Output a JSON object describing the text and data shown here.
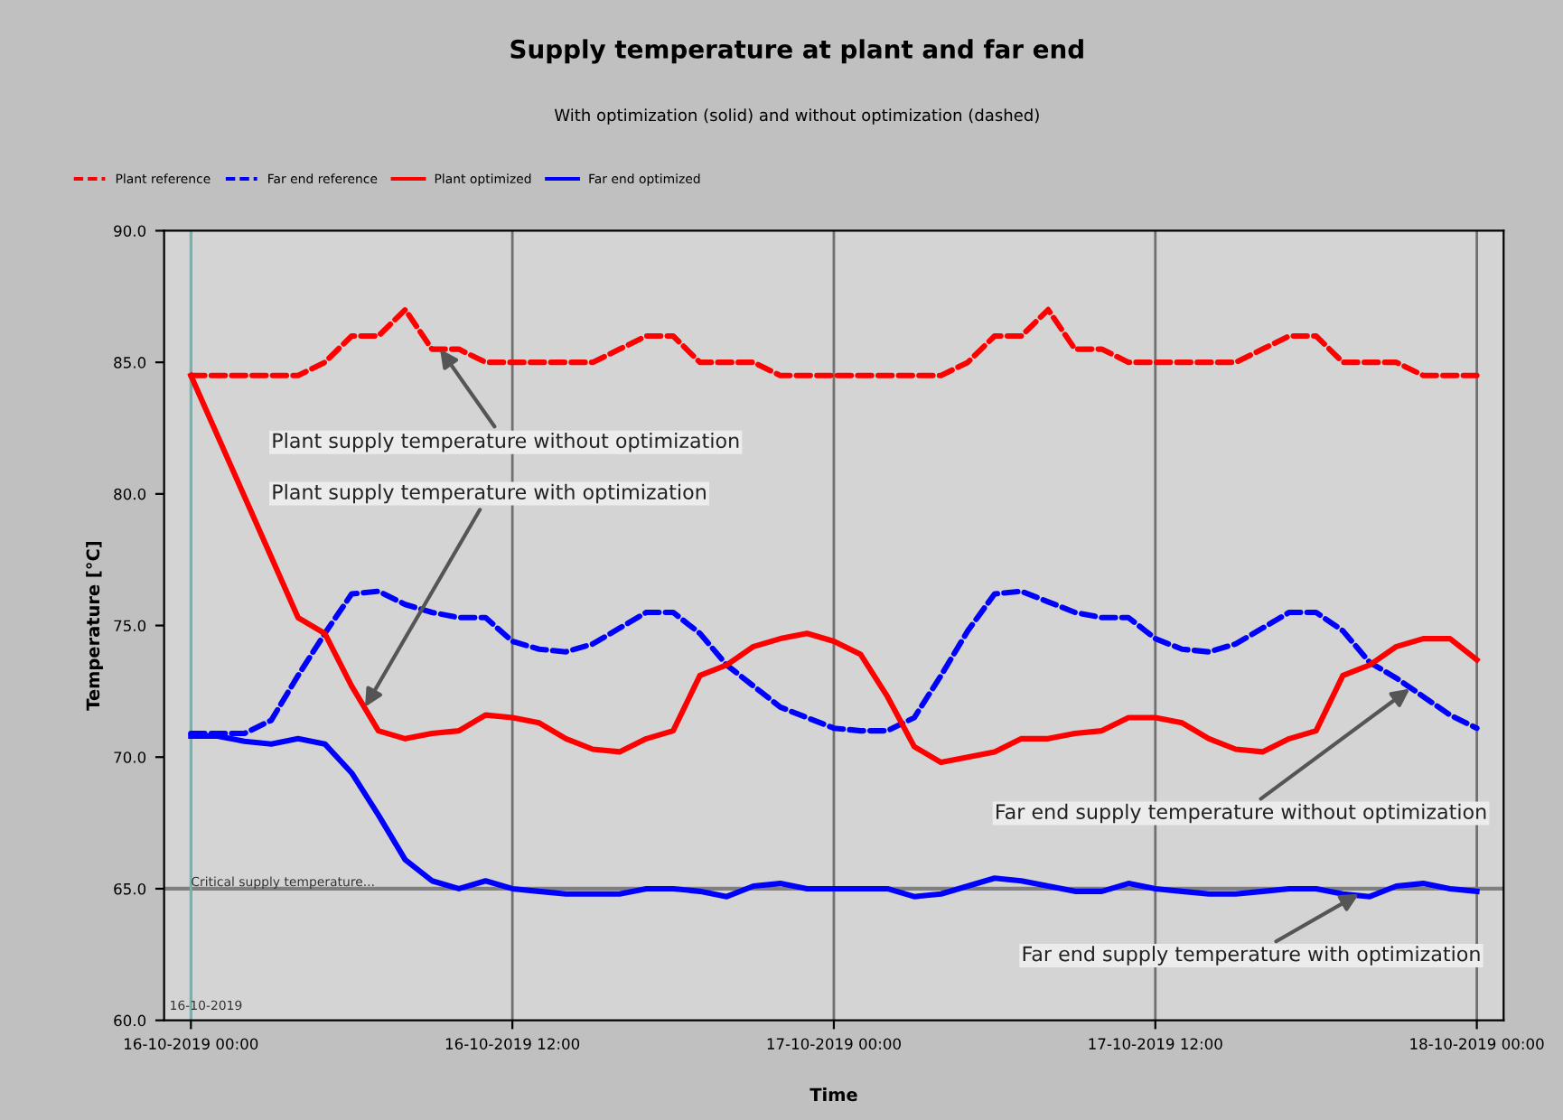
{
  "chart_data": {
    "type": "line",
    "title": "Supply temperature at plant and far end",
    "subtitle": "With optimization (solid) and without optimization (dashed)",
    "xlabel": "Time",
    "ylabel": "Temperature [°C]",
    "x": [
      "2019-10-16T00:00",
      "2019-10-16T01:00",
      "2019-10-16T02:00",
      "2019-10-16T03:00",
      "2019-10-16T04:00",
      "2019-10-16T05:00",
      "2019-10-16T06:00",
      "2019-10-16T07:00",
      "2019-10-16T08:00",
      "2019-10-16T09:00",
      "2019-10-16T10:00",
      "2019-10-16T11:00",
      "2019-10-16T12:00",
      "2019-10-16T13:00",
      "2019-10-16T14:00",
      "2019-10-16T15:00",
      "2019-10-16T16:00",
      "2019-10-16T17:00",
      "2019-10-16T18:00",
      "2019-10-16T19:00",
      "2019-10-16T20:00",
      "2019-10-16T21:00",
      "2019-10-16T22:00",
      "2019-10-16T23:00",
      "2019-10-17T00:00",
      "2019-10-17T01:00",
      "2019-10-17T02:00",
      "2019-10-17T03:00",
      "2019-10-17T04:00",
      "2019-10-17T05:00",
      "2019-10-17T06:00",
      "2019-10-17T07:00",
      "2019-10-17T08:00",
      "2019-10-17T09:00",
      "2019-10-17T10:00",
      "2019-10-17T11:00",
      "2019-10-17T12:00",
      "2019-10-17T13:00",
      "2019-10-17T14:00",
      "2019-10-17T15:00",
      "2019-10-17T16:00",
      "2019-10-17T17:00",
      "2019-10-17T18:00",
      "2019-10-17T19:00",
      "2019-10-17T20:00",
      "2019-10-17T21:00",
      "2019-10-17T22:00",
      "2019-10-17T23:00",
      "2019-10-18T00:00"
    ],
    "series": [
      {
        "name": "Plant reference",
        "color": "#ff0000",
        "line_style": "dashed",
        "values": [
          84.5,
          84.5,
          84.5,
          84.5,
          84.5,
          85,
          86,
          86,
          87,
          85.5,
          85.5,
          85,
          85,
          85,
          85,
          85,
          85.5,
          86,
          86,
          85,
          85,
          85,
          84.5,
          84.5,
          84.5,
          84.5,
          84.5,
          84.5,
          84.5,
          85,
          86,
          86,
          87,
          85.5,
          85.5,
          85,
          85,
          85,
          85,
          85,
          85.5,
          86,
          86,
          85,
          85,
          85,
          84.5,
          84.5,
          84.5
        ]
      },
      {
        "name": "Far end reference",
        "color": "#0000ff",
        "line_style": "dashed",
        "values": [
          70.9,
          70.9,
          70.9,
          71.4,
          73.1,
          74.7,
          76.2,
          76.3,
          75.8,
          75.5,
          75.3,
          75.3,
          74.4,
          74.1,
          74.0,
          74.3,
          74.9,
          75.5,
          75.5,
          74.7,
          73.5,
          72.7,
          71.9,
          71.5,
          71.1,
          71.0,
          71.0,
          71.5,
          73.1,
          74.8,
          76.2,
          76.3,
          75.9,
          75.5,
          75.3,
          75.3,
          74.5,
          74.1,
          74.0,
          74.3,
          74.9,
          75.5,
          75.5,
          74.8,
          73.6,
          73.0,
          72.3,
          71.6,
          71.1
        ]
      },
      {
        "name": "Plant optimized",
        "color": "#ff0000",
        "line_style": "solid",
        "values": [
          84.5,
          82.2,
          79.9,
          77.6,
          75.3,
          74.7,
          72.7,
          71.0,
          70.7,
          70.9,
          71.0,
          71.6,
          71.5,
          71.3,
          70.7,
          70.3,
          70.2,
          70.7,
          71.0,
          73.1,
          73.5,
          74.2,
          74.5,
          74.7,
          74.4,
          73.9,
          72.3,
          70.4,
          69.8,
          70.0,
          70.2,
          70.7,
          70.7,
          70.9,
          71.0,
          71.5,
          71.5,
          71.3,
          70.7,
          70.3,
          70.2,
          70.7,
          71.0,
          73.1,
          73.5,
          74.2,
          74.5,
          74.5,
          73.7
        ]
      },
      {
        "name": "Far end optimized",
        "color": "#0000ff",
        "line_style": "solid",
        "values": [
          70.8,
          70.8,
          70.6,
          70.5,
          70.7,
          70.5,
          69.4,
          67.8,
          66.1,
          65.3,
          65.0,
          65.3,
          65.0,
          64.9,
          64.8,
          64.8,
          64.8,
          65.0,
          65.0,
          64.9,
          64.7,
          65.1,
          65.2,
          65.0,
          65.0,
          65.0,
          65.0,
          64.7,
          64.8,
          65.1,
          65.4,
          65.3,
          65.1,
          64.9,
          64.9,
          65.2,
          65.0,
          64.9,
          64.8,
          64.8,
          64.9,
          65.0,
          65.0,
          64.8,
          64.7,
          65.1,
          65.2,
          65.0,
          64.9
        ]
      }
    ],
    "xlim": [
      "2019-10-15T23:00",
      "2019-10-18T01:00"
    ],
    "ylim": [
      60,
      90
    ],
    "xticks": [
      {
        "value": "2019-10-16T00:00",
        "label": "16-10-2019 00:00"
      },
      {
        "value": "2019-10-16T12:00",
        "label": "16-10-2019 12:00"
      },
      {
        "value": "2019-10-17T00:00",
        "label": "17-10-2019 00:00"
      },
      {
        "value": "2019-10-17T12:00",
        "label": "17-10-2019 12:00"
      },
      {
        "value": "2019-10-18T00:00",
        "label": "18-10-2019 00:00"
      }
    ],
    "yticks": [
      {
        "value": 60,
        "label": "60.0"
      },
      {
        "value": 65,
        "label": "65.0"
      },
      {
        "value": 70,
        "label": "70.0"
      },
      {
        "value": 75,
        "label": "75.0"
      },
      {
        "value": 80,
        "label": "80.0"
      },
      {
        "value": 85,
        "label": "85.0"
      },
      {
        "value": 90,
        "label": "90.0"
      }
    ],
    "grid": "x",
    "legend": "top left",
    "marker": "none",
    "ref_lines": [
      {
        "axis": "y",
        "value": 65,
        "label": "Critical supply temperature...",
        "color": "#808080"
      },
      {
        "axis": "x",
        "value": "2019-10-16",
        "label": "16-10-2019",
        "color": "#7fb0b0"
      }
    ],
    "annotations": [
      {
        "text": "Plant supply temperature without optimization",
        "x": "2019-10-16T09:18",
        "y": 85.5
      },
      {
        "text": "Plant supply temperature with optimization",
        "x": "2019-10-16T06:30",
        "y": 71.9
      },
      {
        "text": "Far end supply temperature without optimization",
        "x": "2019-10-17T21:30",
        "y": 72.6
      },
      {
        "text": "Far end supply temperature with optimization",
        "x": "2019-10-17T19:36",
        "y": 64.8
      }
    ]
  }
}
